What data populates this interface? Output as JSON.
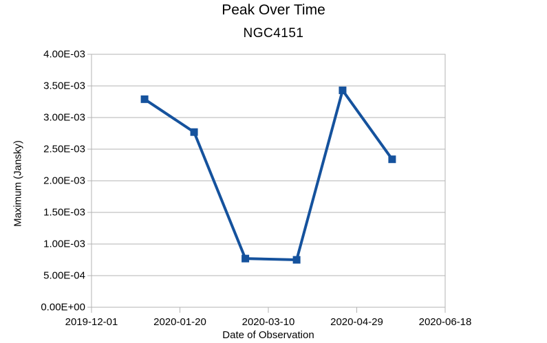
{
  "chart_data": {
    "type": "line",
    "title": "Peak Over Time",
    "subtitle": "NGC4151",
    "xlabel": "Date of Observation",
    "ylabel": "Maximum (Jansky)",
    "grid": "horizontal-only",
    "legend": "none",
    "background_color": "#ffffff",
    "axis_color": "#b3b3b3",
    "text_color": "#000000",
    "x_axis": {
      "kind": "date",
      "min": "2019-12-01",
      "max": "2020-06-18",
      "tick_dates": [
        "2019-12-01",
        "2020-01-20",
        "2020-03-10",
        "2020-04-29",
        "2020-06-18"
      ],
      "tick_labels": [
        "2019-12-01",
        "2020-01-20",
        "2020-03-10",
        "2020-04-29",
        "2020-06-18"
      ]
    },
    "y_axis": {
      "min": 0,
      "max": 0.004,
      "tick_values": [
        0,
        0.0005,
        0.001,
        0.0015,
        0.002,
        0.0025,
        0.003,
        0.0035,
        0.004
      ],
      "tick_labels": [
        "0.00E+00",
        "5.00E-04",
        "1.00E-03",
        "1.50E-03",
        "2.00E-03",
        "2.50E-03",
        "3.00E-03",
        "3.50E-03",
        "4.00E-03"
      ]
    },
    "series": [
      {
        "name": "NGC4151",
        "color": "#15529d",
        "marker": "square",
        "line_width": 4,
        "x": [
          "2019-12-31",
          "2020-01-28",
          "2020-02-26",
          "2020-03-26",
          "2020-04-21",
          "2020-05-19"
        ],
        "y": [
          0.00329,
          0.00277,
          0.00077,
          0.00075,
          0.00343,
          0.00234
        ]
      }
    ]
  }
}
